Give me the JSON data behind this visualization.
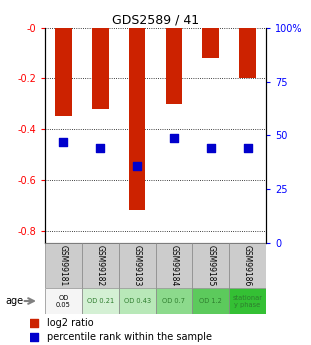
{
  "title": "GDS2589 / 41",
  "samples": [
    "GSM99181",
    "GSM99182",
    "GSM99183",
    "GSM99184",
    "GSM99185",
    "GSM99186"
  ],
  "log2_ratios": [
    -0.35,
    -0.32,
    -0.72,
    -0.3,
    -0.12,
    -0.2
  ],
  "percentile_ranks": [
    0.47,
    0.44,
    0.36,
    0.49,
    0.44,
    0.44
  ],
  "bar_color": "#cc2200",
  "dot_color": "#0000cc",
  "ylim_left": [
    -0.85,
    0.0
  ],
  "ylim_right": [
    0,
    100
  ],
  "yticks_left": [
    0.0,
    -0.2,
    -0.4,
    -0.6,
    -0.8
  ],
  "ytick_labels_left": [
    "-0",
    "-0.2",
    "-0.4",
    "-0.6",
    "-0.8"
  ],
  "yticks_right": [
    0,
    25,
    50,
    75,
    100
  ],
  "ytick_labels_right": [
    "0",
    "25",
    "50",
    "75",
    "100%"
  ],
  "age_labels": [
    "OD\n0.05",
    "OD 0.21",
    "OD 0.43",
    "OD 0.7",
    "OD 1.2",
    "stationar\ny phase"
  ],
  "age_colors": [
    "#f5f5f5",
    "#d4f0d4",
    "#b8e8b8",
    "#8cda8c",
    "#5cca5c",
    "#34c034"
  ],
  "age_label_colors": [
    "#000000",
    "#2e7d2e",
    "#2e7d2e",
    "#2e7d2e",
    "#2e7d2e",
    "#2e7d2e"
  ],
  "sample_bg_color": "#cccccc",
  "bar_width": 0.45,
  "dot_size": 30,
  "dot_marker": "s",
  "fig_width": 3.11,
  "fig_height": 3.45,
  "dpi": 100
}
